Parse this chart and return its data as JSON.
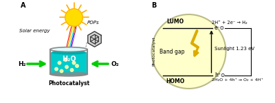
{
  "panel_A_label": "A",
  "panel_B_label": "B",
  "solar_energy_text": "Solar energy",
  "pops_text": "POPs",
  "h2o_text": "H₂O",
  "h2_text": "H₂",
  "o2_text": "O₂",
  "photocatalyst_text": "Photocatalyst",
  "lumo_text": "LUMO",
  "homo_text": "HOMO",
  "band_gap_text": "Band gap",
  "photocatalyst_side_text": "Photocatalyst",
  "sunlight_text": "Sunlight 1.23 eV",
  "reaction_top": "2H⁺ + 2e⁻ → H₂",
  "reaction_bottom": "2H₂O + 4h⁺ → O₂ + 4H⁺",
  "bg_color": "#ffffff",
  "circle_fill": "#ffffcc",
  "circle_edge": "#bbbb88",
  "water_color": "#00cccc",
  "water_dark": "#00aaaa",
  "arrow_green": "#00cc00",
  "sun_yellow": "#ffdd00",
  "sun_orange": "#ffaa00",
  "bolt_color": "#ddaa00",
  "ray_colors": [
    "#ff0000",
    "#ff8800",
    "#ffff00",
    "#00ffff",
    "#0000ff",
    "#aa00aa"
  ],
  "hex_color": "#333333",
  "bubble_color": "#ffffaa"
}
